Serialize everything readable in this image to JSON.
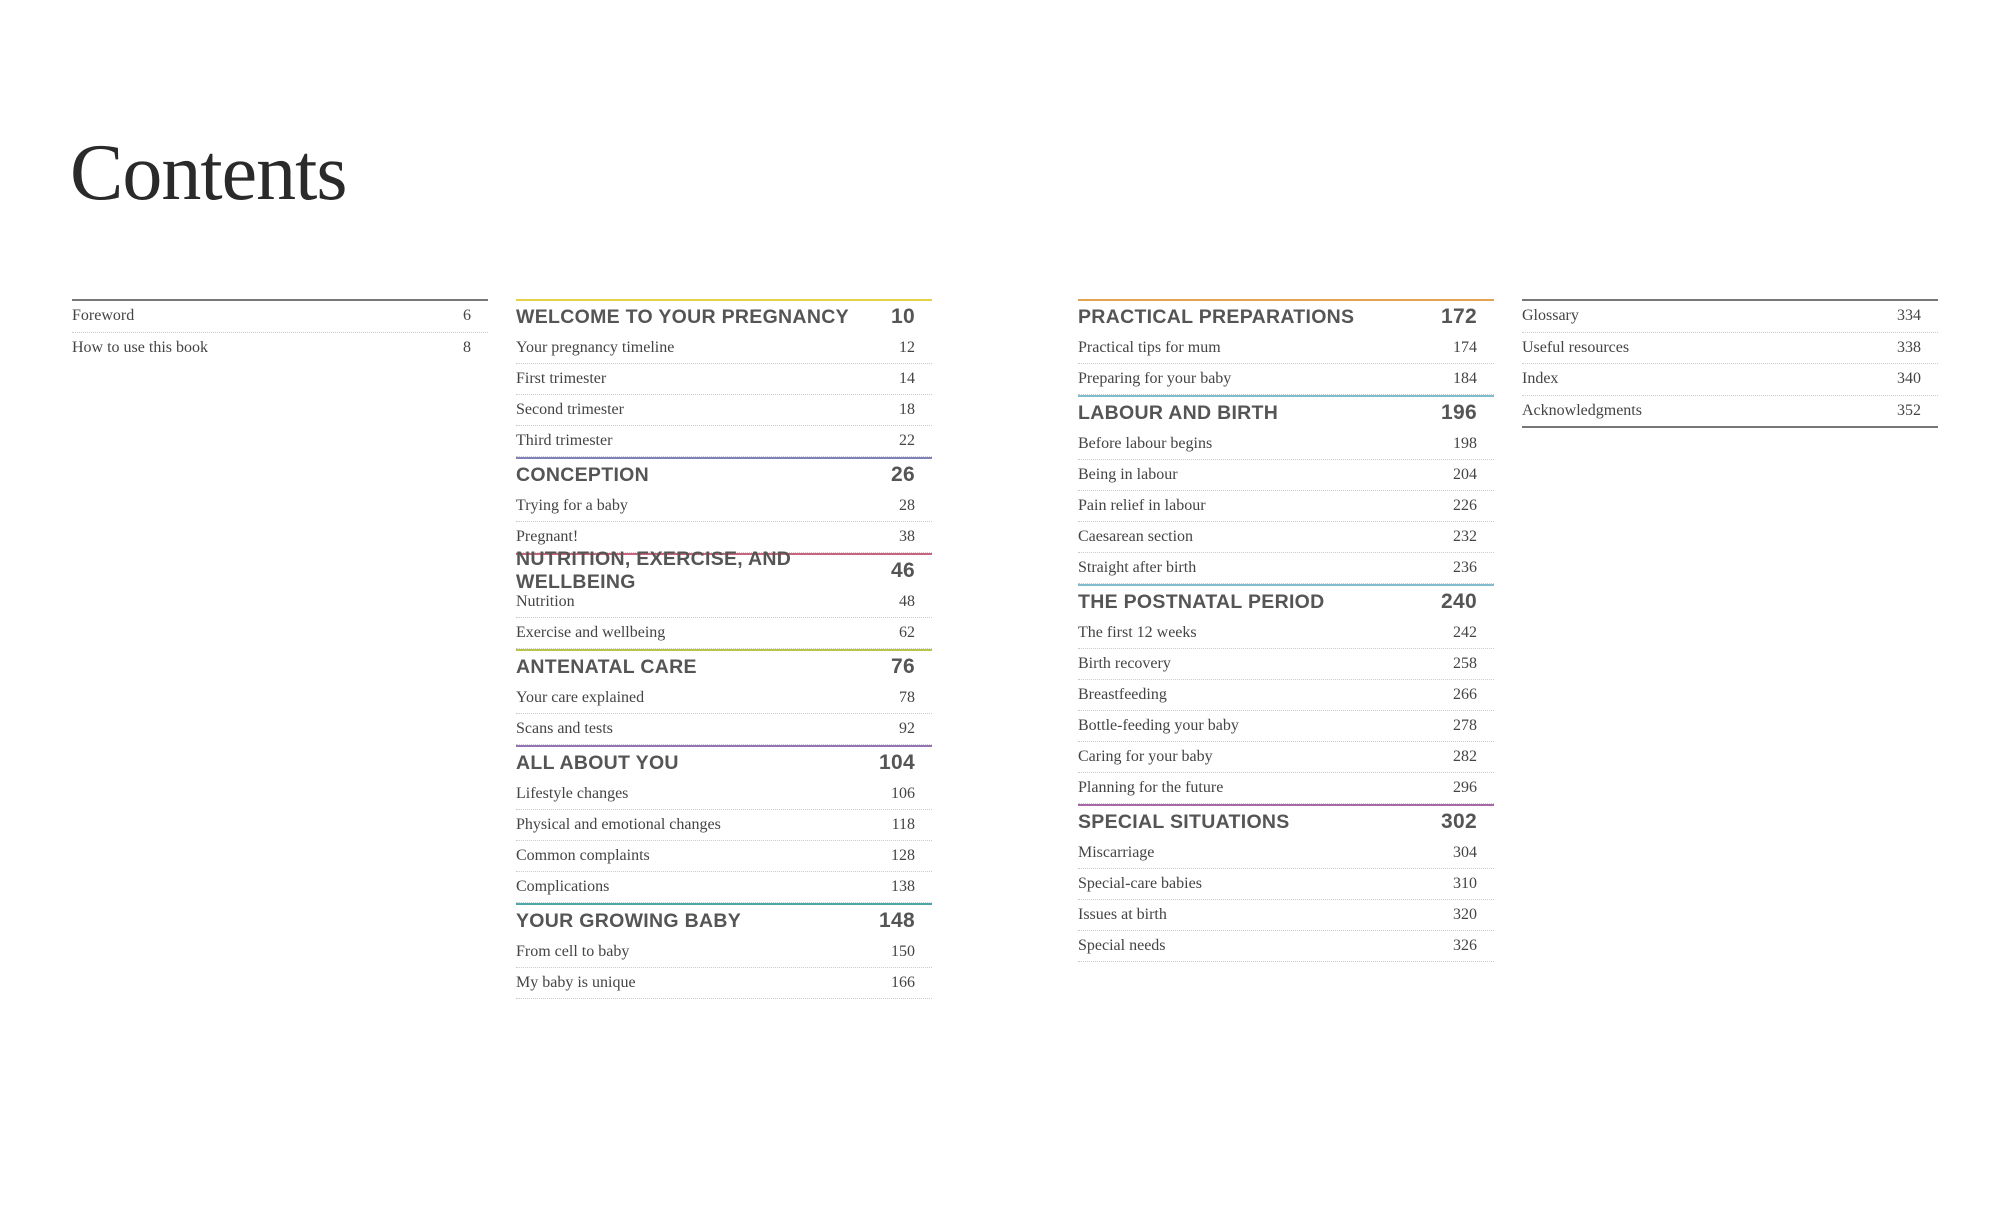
{
  "title": "Contents",
  "columns": [
    {
      "type": "plain",
      "items": [
        {
          "label": "Foreword",
          "page": "6"
        },
        {
          "label": "How to use this book",
          "page": "8"
        }
      ]
    },
    {
      "type": "sections",
      "sections": [
        {
          "title": "WELCOME TO YOUR PREGNANCY",
          "page": "10",
          "color": "#e6d24a",
          "items": [
            {
              "label": "Your pregnancy timeline",
              "page": "12"
            },
            {
              "label": "First trimester",
              "page": "14"
            },
            {
              "label": "Second trimester",
              "page": "18"
            },
            {
              "label": "Third trimester",
              "page": "22"
            }
          ]
        },
        {
          "title": "CONCEPTION",
          "page": "26",
          "color": "#7e82b8",
          "items": [
            {
              "label": "Trying for a baby",
              "page": "28"
            },
            {
              "label": "Pregnant!",
              "page": "38"
            }
          ]
        },
        {
          "title": "NUTRITION, EXERCISE, AND WELLBEING",
          "page": "46",
          "color": "#c9647c",
          "items": [
            {
              "label": "Nutrition",
              "page": "48"
            },
            {
              "label": "Exercise and wellbeing",
              "page": "62"
            }
          ]
        },
        {
          "title": "ANTENATAL CARE",
          "page": "76",
          "color": "#b8c24e",
          "items": [
            {
              "label": "Your care explained",
              "page": "78"
            },
            {
              "label": "Scans and tests",
              "page": "92"
            }
          ]
        },
        {
          "title": "ALL ABOUT YOU",
          "page": "104",
          "color": "#9474b4",
          "items": [
            {
              "label": "Lifestyle changes",
              "page": "106"
            },
            {
              "label": "Physical and emotional changes",
              "page": "118"
            },
            {
              "label": "Common complaints",
              "page": "128"
            },
            {
              "label": "Complications",
              "page": "138"
            }
          ]
        },
        {
          "title": "YOUR GROWING BABY",
          "page": "148",
          "color": "#4ea6a8",
          "items": [
            {
              "label": "From cell to baby",
              "page": "150"
            },
            {
              "label": "My baby is unique",
              "page": "166"
            }
          ]
        }
      ]
    },
    {
      "type": "sections",
      "sections": [
        {
          "title": "PRACTICAL PREPARATIONS",
          "page": "172",
          "color": "#e0a352",
          "items": [
            {
              "label": "Practical tips for mum",
              "page": "174"
            },
            {
              "label": "Preparing for your baby",
              "page": "184"
            }
          ]
        },
        {
          "title": "LABOUR AND BIRTH",
          "page": "196",
          "color": "#80bccd",
          "items": [
            {
              "label": "Before labour begins",
              "page": "198"
            },
            {
              "label": "Being in labour",
              "page": "204"
            },
            {
              "label": "Pain relief in labour",
              "page": "226"
            },
            {
              "label": "Caesarean section",
              "page": "232"
            },
            {
              "label": "Straight after birth",
              "page": "236"
            }
          ]
        },
        {
          "title": "THE POSTNATAL PERIOD",
          "page": "240",
          "color": "#80bccd",
          "items": [
            {
              "label": "The first 12 weeks",
              "page": "242"
            },
            {
              "label": "Birth recovery",
              "page": "258"
            },
            {
              "label": "Breastfeeding",
              "page": "266"
            },
            {
              "label": "Bottle-feeding your baby",
              "page": "278"
            },
            {
              "label": "Caring for your baby",
              "page": "282"
            },
            {
              "label": "Planning for the future",
              "page": "296"
            }
          ]
        },
        {
          "title": "SPECIAL SITUATIONS",
          "page": "302",
          "color": "#a866a6",
          "items": [
            {
              "label": "Miscarriage",
              "page": "304"
            },
            {
              "label": "Special-care babies",
              "page": "310"
            },
            {
              "label": "Issues at birth",
              "page": "320"
            },
            {
              "label": "Special needs",
              "page": "326"
            }
          ]
        }
      ]
    },
    {
      "type": "plain",
      "closed": true,
      "items": [
        {
          "label": "Glossary",
          "page": "334"
        },
        {
          "label": "Useful resources",
          "page": "338"
        },
        {
          "label": "Index",
          "page": "340"
        },
        {
          "label": "Acknowledgments",
          "page": "352"
        }
      ]
    }
  ]
}
